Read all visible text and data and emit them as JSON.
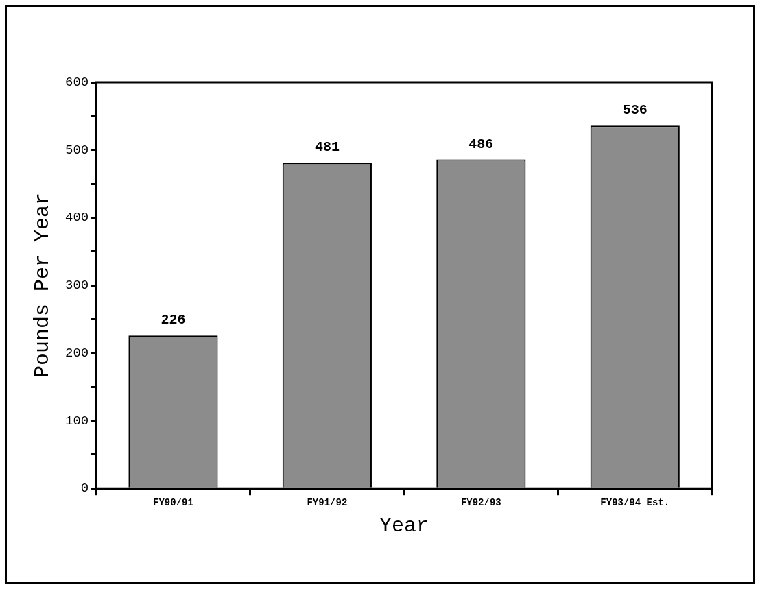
{
  "chart_data": {
    "type": "bar",
    "xlabel": "Year",
    "ylabel": "Pounds Per Year",
    "categories": [
      "FY90/91",
      "FY91/92",
      "FY92/93",
      "FY93/94 Est."
    ],
    "values": [
      226,
      481,
      486,
      536
    ],
    "color": "#8c8c8c",
    "ylim": [
      0,
      600
    ],
    "yticks": [
      0,
      {
        "value": 50,
        "label": null
      },
      100,
      {
        "value": 150,
        "label": null
      },
      200,
      {
        "value": 250,
        "label": null
      },
      300,
      {
        "value": 350,
        "label": null
      },
      400,
      {
        "value": 450,
        "label": null
      },
      500,
      {
        "value": 550,
        "label": null
      },
      600
    ],
    "data_labels": true,
    "grid": false,
    "legend": false
  }
}
